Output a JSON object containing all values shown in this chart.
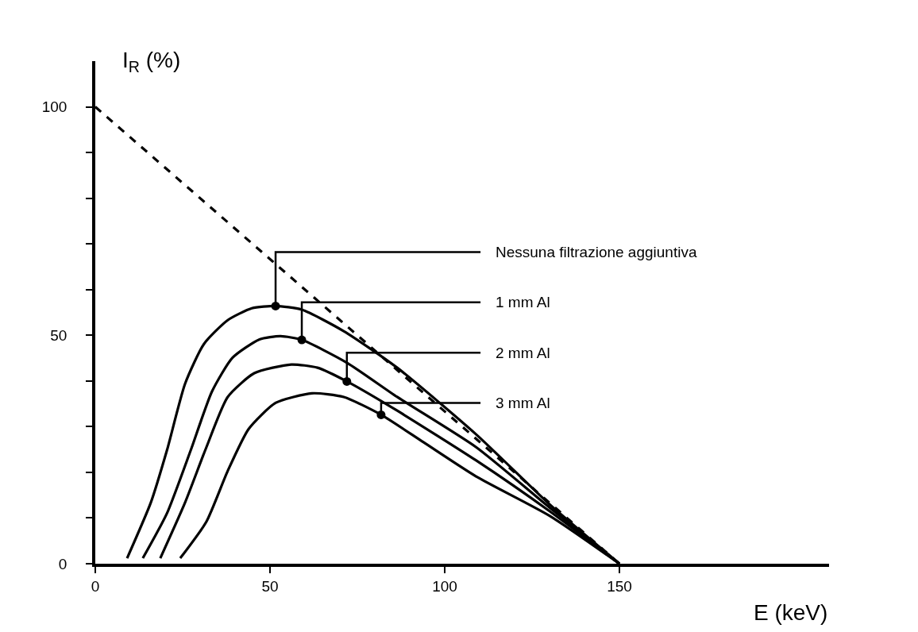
{
  "chart_data": {
    "type": "line",
    "xlabel": "E (keV)",
    "ylabel": "I$_{R}$ (%)",
    "xlim": [
      0,
      210
    ],
    "ylim": [
      0,
      110
    ],
    "xticks": [
      0,
      50,
      100,
      150
    ],
    "yticks": [
      0,
      {
        "value": 10,
        "label": null
      },
      {
        "value": 20,
        "label": null
      },
      {
        "value": 30,
        "label": null
      },
      {
        "value": 40,
        "label": null
      },
      50,
      {
        "value": 60,
        "label": null
      },
      {
        "value": 70,
        "label": null
      },
      {
        "value": 80,
        "label": null
      },
      {
        "value": 90,
        "label": null
      },
      100
    ],
    "grid": false,
    "marker": "none",
    "series": [
      {
        "color": "#000000",
        "line_style": "dashed",
        "x": [
          0,
          150
        ],
        "values": [
          100,
          0
        ]
      },
      {
        "color": "#000000",
        "line_style": "solid",
        "x": [
          9.1,
          15.9,
          20.5,
          25.7,
          31.1,
          37.9,
          44.8,
          51.6,
          59.1,
          71.1,
          86.4,
          109,
          130,
          150
        ],
        "values": [
          1.2,
          13.4,
          24.8,
          39.4,
          48.1,
          53.3,
          55.9,
          56.4,
          55.6,
          50.9,
          42.9,
          28.3,
          13,
          0
        ]
      },
      {
        "color": "#000000",
        "line_style": "solid",
        "x": [
          13.6,
          20.5,
          27.3,
          33.4,
          39.3,
          47,
          53,
          59.1,
          72,
          86.4,
          109,
          130,
          150
        ],
        "values": [
          1.2,
          11,
          24.8,
          37.7,
          45.1,
          49.1,
          49.8,
          49,
          44,
          36.5,
          25.5,
          12.3,
          0
        ]
      },
      {
        "color": "#000000",
        "line_style": "solid",
        "x": [
          18.6,
          25.7,
          31.8,
          37.9,
          45.5,
          56.1,
          63.6,
          72,
          86.4,
          109,
          130,
          150
        ],
        "values": [
          1.2,
          13.4,
          25.5,
          36.5,
          41.7,
          43.6,
          42.9,
          39.9,
          33.5,
          22.6,
          11.5,
          0
        ]
      },
      {
        "color": "#000000",
        "line_style": "solid",
        "x": [
          24.3,
          31.8,
          37.9,
          43.9,
          51.6,
          62,
          71.1,
          81.8,
          93.9,
          109,
          130,
          150
        ],
        "values": [
          1.2,
          9.2,
          20.3,
          29.5,
          35.2,
          37.3,
          36.5,
          32.6,
          26.6,
          19.1,
          10.5,
          0
        ]
      }
    ],
    "annotations": [
      {
        "text": "Nessuna filtrazione aggiuntiva",
        "x": 51.6,
        "y": 56.4
      },
      {
        "text": "1 mm Al",
        "x": 59.1,
        "y": 49
      },
      {
        "text": "2 mm Al",
        "x": 72,
        "y": 39.9
      },
      {
        "text": "3 mm Al",
        "x": 81.8,
        "y": 32.6
      }
    ]
  }
}
